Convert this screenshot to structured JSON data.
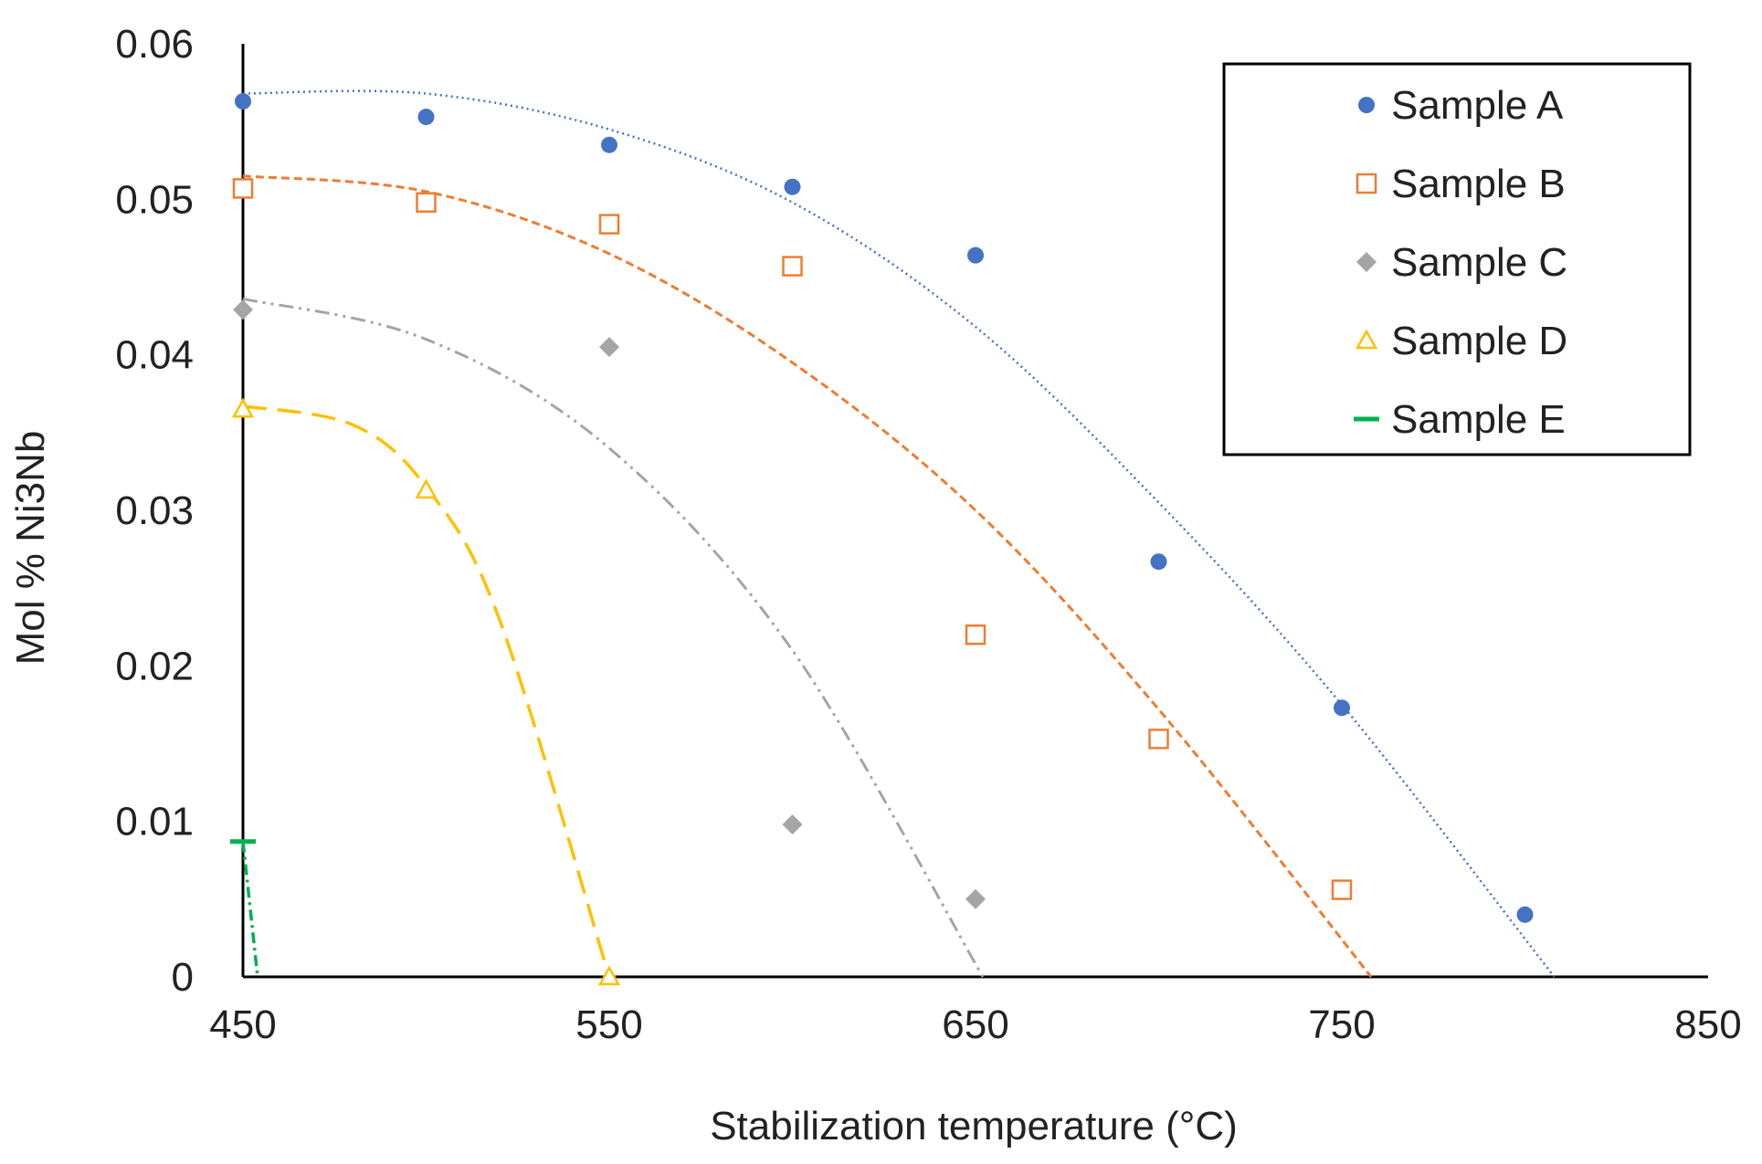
{
  "chart_data": {
    "type": "scatter",
    "title": "",
    "xlabel": "Stabilization temperature (°C)",
    "ylabel": "Mol % Ni3Nb",
    "xlim": [
      450,
      850
    ],
    "ylim": [
      0,
      0.06
    ],
    "xticks": [
      450,
      550,
      650,
      750,
      850
    ],
    "xtick_labels": [
      "450",
      "550",
      "650",
      "750",
      "850"
    ],
    "yticks": [
      0,
      0.01,
      0.02,
      0.03,
      0.04,
      0.05,
      0.06
    ],
    "ytick_labels": [
      "0",
      "0.01",
      "0.02",
      "0.03",
      "0.04",
      "0.05",
      "0.06"
    ],
    "grid": false,
    "legend_position": "top-right",
    "series": [
      {
        "name": "Sample A",
        "marker": "circle",
        "color": "#4472C4",
        "filled": true,
        "x": [
          450,
          500,
          550,
          600,
          650,
          700,
          750,
          800
        ],
        "y": [
          0.0563,
          0.0553,
          0.0535,
          0.0508,
          0.0464,
          0.0267,
          0.0173,
          0.004
        ],
        "trend": {
          "style": "dotted",
          "x": [
            450,
            500,
            550,
            600,
            650,
            700,
            750,
            808
          ],
          "y": [
            0.0568,
            0.0568,
            0.0545,
            0.0498,
            0.0418,
            0.0305,
            0.0175,
            0.0
          ]
        }
      },
      {
        "name": "Sample B",
        "marker": "square",
        "color": "#ED7D31",
        "filled": false,
        "x": [
          450,
          500,
          550,
          600,
          650,
          700,
          750
        ],
        "y": [
          0.0507,
          0.0498,
          0.0484,
          0.0457,
          0.022,
          0.0153,
          0.0056
        ],
        "trend": {
          "style": "dashed",
          "x": [
            450,
            500,
            550,
            600,
            650,
            700,
            758
          ],
          "y": [
            0.0515,
            0.0505,
            0.0465,
            0.0395,
            0.03,
            0.0172,
            0.0
          ]
        }
      },
      {
        "name": "Sample C",
        "marker": "diamond",
        "color": "#A5A5A5",
        "filled": true,
        "x": [
          450,
          550,
          600,
          650
        ],
        "y": [
          0.0429,
          0.0405,
          0.0098,
          0.005
        ],
        "trend": {
          "style": "dash-dot-dot",
          "x": [
            450,
            500,
            550,
            600,
            652
          ],
          "y": [
            0.0436,
            0.041,
            0.034,
            0.021,
            0.0
          ]
        }
      },
      {
        "name": "Sample D",
        "marker": "triangle",
        "color": "#FFC000",
        "filled": false,
        "x": [
          450,
          500,
          550
        ],
        "y": [
          0.0365,
          0.0313,
          0.0
        ],
        "trend": {
          "style": "long-dash",
          "x": [
            450,
            480,
            500,
            520,
            550
          ],
          "y": [
            0.0367,
            0.0355,
            0.0315,
            0.023,
            0.0
          ]
        }
      },
      {
        "name": "Sample E",
        "marker": "dash",
        "color": "#00B050",
        "filled": true,
        "x": [
          450
        ],
        "y": [
          0.0087
        ],
        "trend": {
          "style": "dash-dot",
          "x": [
            450,
            454
          ],
          "y": [
            0.0087,
            0.0
          ]
        }
      }
    ]
  }
}
